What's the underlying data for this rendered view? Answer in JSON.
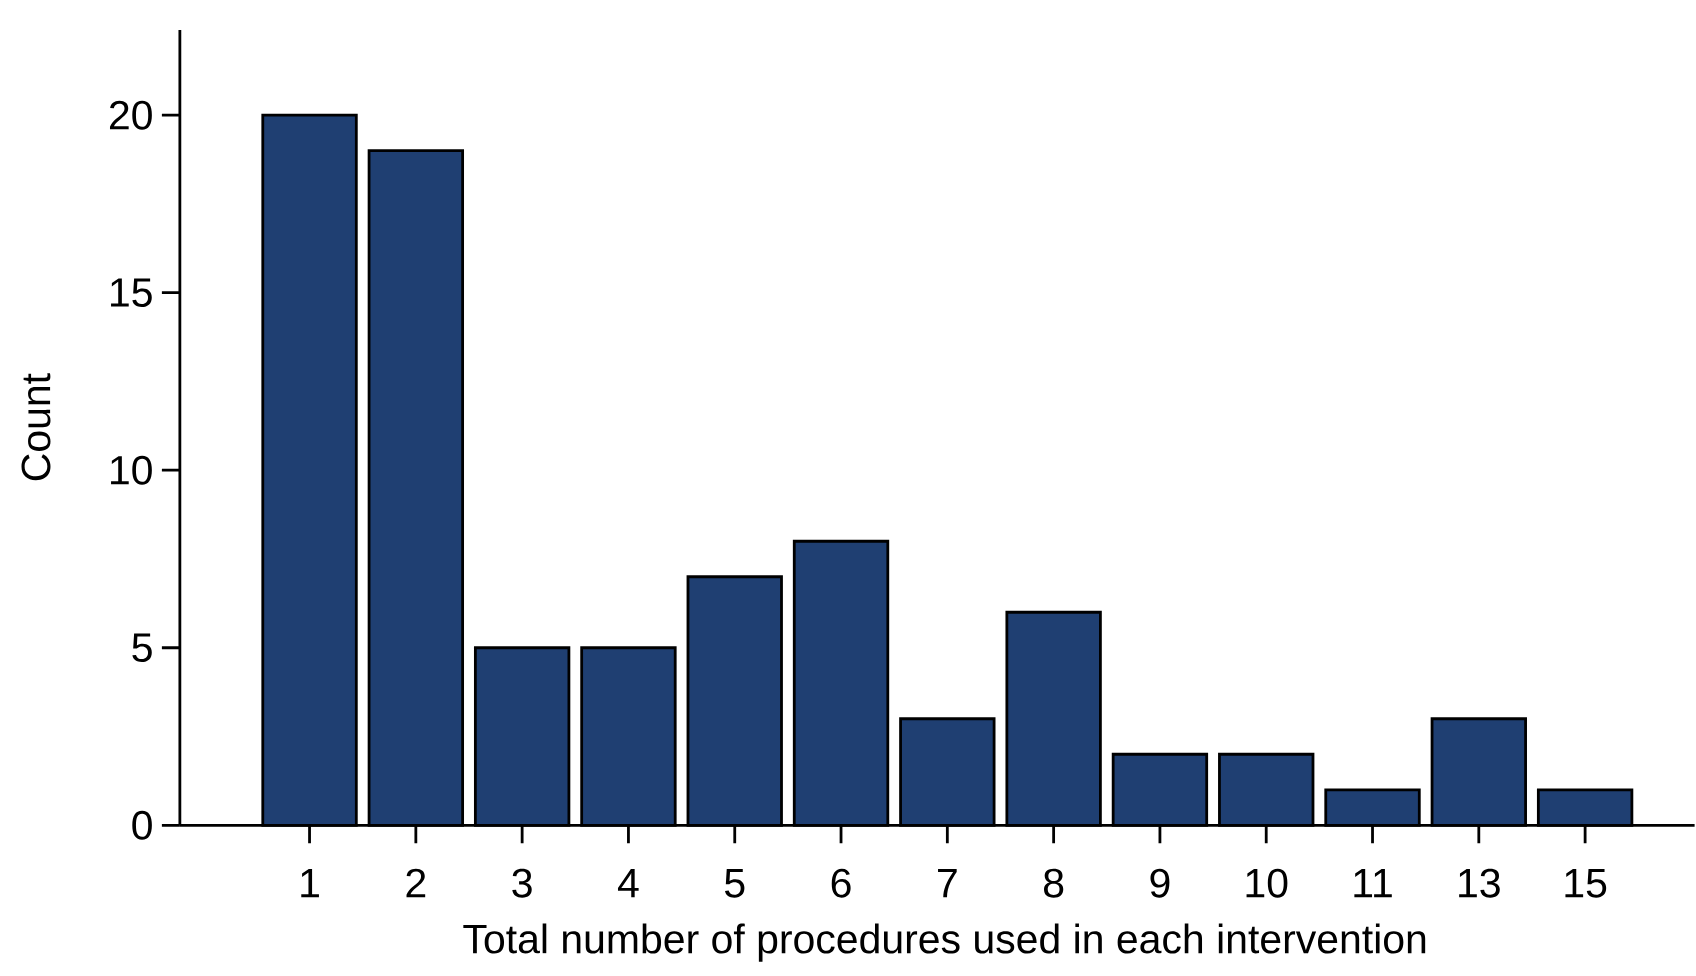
{
  "chart_data": {
    "type": "bar",
    "xlabel": "Total number of procedures used in each intervention",
    "ylabel": "Count",
    "categories": [
      "1",
      "2",
      "3",
      "4",
      "5",
      "6",
      "7",
      "8",
      "9",
      "10",
      "11",
      "13",
      "15"
    ],
    "values": [
      20,
      19,
      5,
      5,
      7,
      8,
      3,
      6,
      2,
      2,
      1,
      3,
      1
    ],
    "color": "#1f3f72",
    "ylim": [
      0,
      22.4
    ],
    "yticks": [
      0,
      5,
      10,
      15,
      20
    ]
  }
}
